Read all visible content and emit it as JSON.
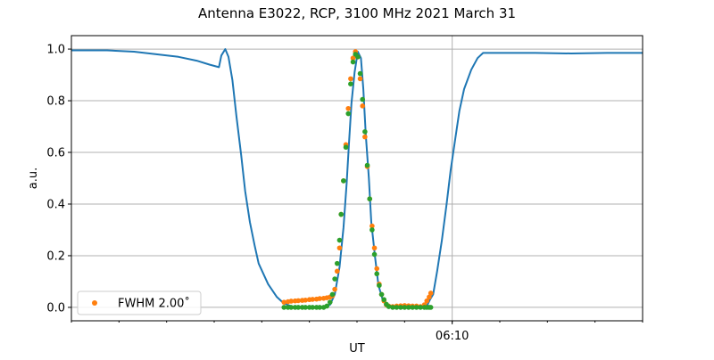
{
  "chart_data": {
    "type": "line",
    "title": "Antenna E3022, RCP, 3100 MHz 2021 March 31",
    "xlabel": "UT",
    "ylabel": "a.u.",
    "xlim": [
      "06:02:00",
      "06:14:00"
    ],
    "ylim": [
      -0.052,
      1.052
    ],
    "x_major_ticks": [
      "06:10"
    ],
    "x_minor_tick_interval_minutes": 1,
    "y_ticks": [
      "0.0",
      "0.2",
      "0.4",
      "0.6",
      "0.8",
      "1.0"
    ],
    "grid": true,
    "legend": {
      "placement": "lower-left",
      "entries": [
        "FWHM 2.00$^\\circ$"
      ],
      "label": "FWHM 2.00˚"
    },
    "colors": {
      "line": "#1f77b4",
      "orange": "#ff7f0e",
      "green": "#2ca02c",
      "grid": "#b0b0b0"
    },
    "series": [
      {
        "style": "line",
        "color": "#1f77b4",
        "x": [
          "06:02:00",
          "06:02:45",
          "06:03:19",
          "06:03:47",
          "06:04:15",
          "06:04:38",
          "06:04:54",
          "06:05:06",
          "06:05:09",
          "06:05:14",
          "06:05:18",
          "06:05:23",
          "06:05:28",
          "06:05:34",
          "06:05:39",
          "06:05:45",
          "06:05:51",
          "06:05:56",
          "06:06:08",
          "06:06:19",
          "06:06:28",
          "06:06:41",
          "06:07:15",
          "06:07:26",
          "06:07:32",
          "06:07:38",
          "06:07:43",
          "06:07:47",
          "06:07:50",
          "06:07:53",
          "06:07:57",
          "06:08:01",
          "06:08:05",
          "06:08:08",
          "06:08:11",
          "06:08:15",
          "06:08:18",
          "06:08:23",
          "06:08:27",
          "06:08:32",
          "06:08:38",
          "06:08:45",
          "06:09:28",
          "06:09:32",
          "06:09:36",
          "06:09:41",
          "06:09:47",
          "06:09:53",
          "06:09:58",
          "06:10:04",
          "06:10:09",
          "06:10:15",
          "06:10:24",
          "06:10:32",
          "06:10:39",
          "06:11:45",
          "06:12:30",
          "06:13:15",
          "06:14:00"
        ],
        "y": [
          0.995,
          0.995,
          0.99,
          0.98,
          0.97,
          0.955,
          0.94,
          0.93,
          0.975,
          1.0,
          0.97,
          0.88,
          0.74,
          0.59,
          0.45,
          0.33,
          0.24,
          0.17,
          0.09,
          0.04,
          0.015,
          0.0,
          0.0,
          0.01,
          0.05,
          0.155,
          0.31,
          0.48,
          0.64,
          0.79,
          0.91,
          0.99,
          0.965,
          0.845,
          0.67,
          0.5,
          0.33,
          0.19,
          0.086,
          0.034,
          0.007,
          0.0,
          0.005,
          0.03,
          0.05,
          0.14,
          0.26,
          0.4,
          0.53,
          0.655,
          0.76,
          0.845,
          0.92,
          0.965,
          0.985,
          0.985,
          0.983,
          0.985,
          0.985
        ]
      },
      {
        "name": "FWHM 2.00˚",
        "style": "scatter",
        "color": "#ff7f0e",
        "x": [
          "06:06:28",
          "06:06:33",
          "06:06:37",
          "06:06:42",
          "06:06:46",
          "06:06:51",
          "06:06:55",
          "06:07:00",
          "06:07:04",
          "06:07:09",
          "06:07:13",
          "06:07:18",
          "06:07:22",
          "06:07:26",
          "06:07:29",
          "06:07:32",
          "06:07:35",
          "06:07:38",
          "06:07:40",
          "06:07:43",
          "06:07:46",
          "06:07:49",
          "06:07:52",
          "06:07:55",
          "06:07:58",
          "06:08:01",
          "06:08:04",
          "06:08:07",
          "06:08:10",
          "06:08:13",
          "06:08:16",
          "06:08:19",
          "06:08:22",
          "06:08:25",
          "06:08:28",
          "06:08:31",
          "06:08:34",
          "06:08:37",
          "06:08:40",
          "06:08:45",
          "06:08:50",
          "06:08:55",
          "06:09:00",
          "06:09:05",
          "06:09:10",
          "06:09:15",
          "06:09:20",
          "06:09:25",
          "06:09:28",
          "06:09:31",
          "06:09:33"
        ],
        "y": [
          0.02,
          0.022,
          0.024,
          0.025,
          0.026,
          0.027,
          0.028,
          0.03,
          0.031,
          0.032,
          0.034,
          0.035,
          0.037,
          0.04,
          0.045,
          0.07,
          0.14,
          0.23,
          0.36,
          0.49,
          0.63,
          0.77,
          0.885,
          0.965,
          0.99,
          0.97,
          0.885,
          0.78,
          0.66,
          0.545,
          0.42,
          0.315,
          0.23,
          0.15,
          0.09,
          0.05,
          0.025,
          0.01,
          0.005,
          0.003,
          0.005,
          0.006,
          0.007,
          0.006,
          0.005,
          0.005,
          0.003,
          0.01,
          0.025,
          0.04,
          0.055
        ]
      },
      {
        "style": "scatter",
        "color": "#2ca02c",
        "x": [
          "06:06:28",
          "06:06:33",
          "06:06:37",
          "06:06:42",
          "06:06:46",
          "06:06:51",
          "06:06:55",
          "06:07:00",
          "06:07:04",
          "06:07:09",
          "06:07:13",
          "06:07:18",
          "06:07:22",
          "06:07:26",
          "06:07:29",
          "06:07:32",
          "06:07:35",
          "06:07:38",
          "06:07:40",
          "06:07:43",
          "06:07:46",
          "06:07:49",
          "06:07:52",
          "06:07:55",
          "06:07:58",
          "06:08:01",
          "06:08:04",
          "06:08:07",
          "06:08:10",
          "06:08:13",
          "06:08:16",
          "06:08:19",
          "06:08:22",
          "06:08:25",
          "06:08:28",
          "06:08:31",
          "06:08:34",
          "06:08:37",
          "06:08:40",
          "06:08:45",
          "06:08:50",
          "06:08:55",
          "06:09:00",
          "06:09:05",
          "06:09:10",
          "06:09:15",
          "06:09:20",
          "06:09:25",
          "06:09:28",
          "06:09:31",
          "06:09:33"
        ],
        "y": [
          0,
          0,
          0,
          0,
          0,
          0,
          0,
          0,
          0,
          0,
          0,
          0,
          0.005,
          0.02,
          0.05,
          0.11,
          0.17,
          0.26,
          0.36,
          0.49,
          0.62,
          0.75,
          0.865,
          0.95,
          0.98,
          0.97,
          0.905,
          0.805,
          0.68,
          0.55,
          0.42,
          0.3,
          0.205,
          0.13,
          0.085,
          0.05,
          0.03,
          0.012,
          0.003,
          0,
          0,
          0,
          0,
          0,
          0,
          0,
          0,
          0,
          0,
          0,
          0
        ]
      }
    ]
  }
}
